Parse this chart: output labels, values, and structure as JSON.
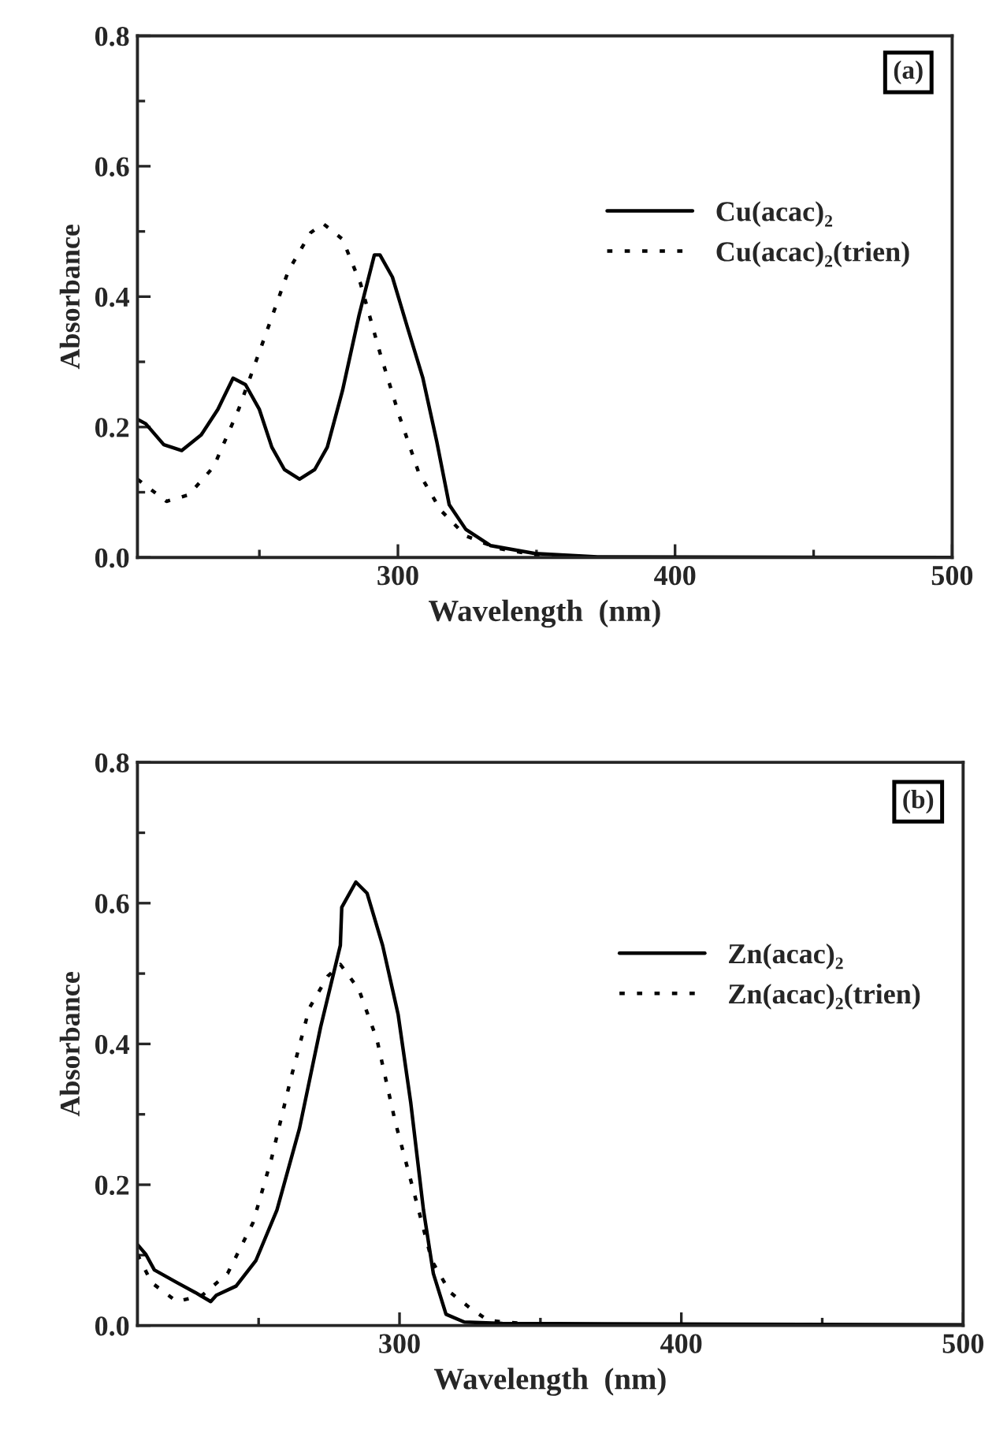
{
  "chart_data": [
    {
      "type": "line",
      "xlabel": "Wavelength  (nm)",
      "ylabel": "Absorbance",
      "annotations": [
        "(a)"
      ],
      "legend": "right",
      "xlim": [
        206,
        500
      ],
      "ylim": [
        0,
        0.8
      ],
      "xticks": [
        {
          "value": 250,
          "label": null
        },
        300,
        {
          "value": 350,
          "label": null
        },
        400,
        {
          "value": 450,
          "label": null
        },
        500
      ],
      "yticks": [
        {
          "value": 0,
          "label": "0.0"
        },
        {
          "value": 0.1,
          "label": null
        },
        {
          "value": 0.2,
          "label": "0.2"
        },
        {
          "value": 0.3,
          "label": null
        },
        {
          "value": 0.4,
          "label": "0.4"
        },
        {
          "value": 0.5,
          "label": null
        },
        {
          "value": 0.6,
          "label": "0.6"
        },
        {
          "value": 0.7,
          "label": null
        },
        {
          "value": 0.8,
          "label": "0.8"
        }
      ],
      "series": [
        {
          "name": "Cu(acac)₂",
          "color": "#000000",
          "line_style": "solid",
          "x": [
            206,
            209,
            215.5,
            222,
            229,
            235,
            240.5,
            245,
            250,
            254.5,
            259,
            264.5,
            270,
            274.5,
            280,
            286,
            291.5,
            293.5,
            298,
            303.5,
            309,
            314,
            318.5,
            324.5,
            333.5,
            349.5,
            372,
            500
          ],
          "values": [
            0.212,
            0.205,
            0.173,
            0.164,
            0.188,
            0.227,
            0.275,
            0.265,
            0.227,
            0.169,
            0.135,
            0.12,
            0.135,
            0.169,
            0.256,
            0.372,
            0.464,
            0.464,
            0.43,
            0.352,
            0.275,
            0.178,
            0.081,
            0.043,
            0.018,
            0.006,
            0.001,
            0
          ]
        },
        {
          "name": "Cu(acac)₂(trien)",
          "color": "#000000",
          "line_style": "dotted",
          "x": [
            206,
            216.5,
            224.5,
            233.5,
            242.5,
            251.5,
            260.5,
            268.5,
            273,
            280,
            286.5,
            293.5,
            300.5,
            307.5,
            315.5,
            324.5,
            336,
            349.5,
            372,
            400
          ],
          "values": [
            0.12,
            0.086,
            0.096,
            0.139,
            0.227,
            0.333,
            0.44,
            0.498,
            0.512,
            0.488,
            0.42,
            0.314,
            0.217,
            0.13,
            0.072,
            0.033,
            0.014,
            0.004,
            0,
            0
          ]
        }
      ]
    },
    {
      "type": "line",
      "xlabel": "Wavelength  (nm)",
      "ylabel": "Absorbance",
      "annotations": [
        "(b)"
      ],
      "legend": "right",
      "xlim": [
        207,
        500
      ],
      "ylim": [
        0,
        0.8
      ],
      "xticks": [
        {
          "value": 250,
          "label": null
        },
        300,
        {
          "value": 350,
          "label": null
        },
        400,
        {
          "value": 450,
          "label": null
        },
        500
      ],
      "yticks": [
        {
          "value": 0,
          "label": "0.0"
        },
        {
          "value": 0.1,
          "label": null
        },
        {
          "value": 0.2,
          "label": "0.2"
        },
        {
          "value": 0.3,
          "label": null
        },
        {
          "value": 0.4,
          "label": "0.4"
        },
        {
          "value": 0.5,
          "label": null
        },
        {
          "value": 0.6,
          "label": "0.6"
        },
        {
          "value": 0.7,
          "label": null
        },
        {
          "value": 0.8,
          "label": "0.8"
        }
      ],
      "series": [
        {
          "name": "Zn(acac)₂",
          "color": "#000000",
          "line_style": "solid",
          "x": [
            207,
            210,
            213,
            221,
            227.5,
            233,
            235,
            242,
            249,
            256.5,
            264.5,
            272,
            279,
            279.5,
            284.5,
            288.5,
            294,
            299.5,
            304,
            308.5,
            312,
            316.5,
            323,
            336.5,
            500
          ],
          "values": [
            0.115,
            0.101,
            0.079,
            0.061,
            0.047,
            0.034,
            0.043,
            0.056,
            0.092,
            0.164,
            0.28,
            0.424,
            0.54,
            0.594,
            0.63,
            0.614,
            0.54,
            0.442,
            0.316,
            0.164,
            0.074,
            0.016,
            0.005,
            0.003,
            0.001
          ]
        },
        {
          "name": "Zn(acac)₂(trien)",
          "color": "#000000",
          "line_style": "dotted",
          "x": [
            207,
            212,
            221,
            230,
            239,
            248,
            254.5,
            261.5,
            268,
            274.5,
            279,
            285.5,
            292,
            298.5,
            305,
            311.5,
            318,
            325,
            331.5,
            349.5,
            500
          ],
          "values": [
            0.101,
            0.061,
            0.034,
            0.043,
            0.074,
            0.146,
            0.236,
            0.352,
            0.451,
            0.496,
            0.513,
            0.478,
            0.406,
            0.289,
            0.191,
            0.092,
            0.047,
            0.025,
            0.007,
            0.001,
            0
          ]
        }
      ]
    }
  ]
}
